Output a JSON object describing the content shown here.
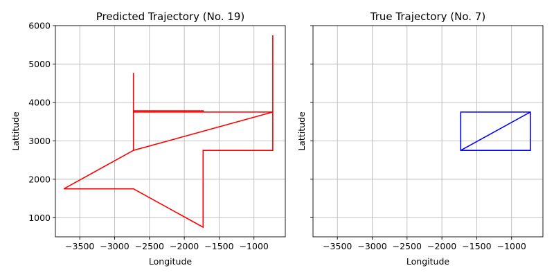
{
  "chart_data": [
    {
      "type": "line",
      "title": "Predicted Trajectory (No. 19)",
      "xlabel": "Longitude",
      "ylabel": "Lattitude",
      "xlim": [
        -3850,
        -550
      ],
      "ylim": [
        500,
        6000
      ],
      "xticks": [
        -3500,
        -3000,
        -2500,
        -2000,
        -1500,
        -1000
      ],
      "yticks": [
        1000,
        2000,
        3000,
        4000,
        5000,
        6000
      ],
      "grid": true,
      "color": "#ff0000",
      "points": [
        [
          -730,
          5750
        ],
        [
          -730,
          3750
        ],
        [
          -1730,
          3750
        ],
        [
          -1730,
          3780
        ],
        [
          -2730,
          3780
        ],
        [
          -2730,
          2750
        ],
        [
          -730,
          3750
        ],
        [
          -730,
          2750
        ],
        [
          -1730,
          2750
        ],
        [
          -1730,
          750
        ],
        [
          -2730,
          1750
        ],
        [
          -3730,
          1750
        ],
        [
          -2730,
          2750
        ],
        [
          -2730,
          4770
        ],
        [
          -2730,
          3750
        ],
        [
          -1730,
          3750
        ]
      ]
    },
    {
      "type": "line",
      "title": "True Trajectory (No. 7)",
      "xlabel": "Longitude",
      "ylabel": "Lattitude",
      "xlim": [
        -3850,
        -550
      ],
      "ylim": [
        500,
        6000
      ],
      "xticks": [
        -3500,
        -3000,
        -2500,
        -2000,
        -1500,
        -1000
      ],
      "yticks": [
        1000,
        2000,
        3000,
        4000,
        5000,
        6000
      ],
      "grid": true,
      "color": "#0000ff",
      "points": [
        [
          -1730,
          3750
        ],
        [
          -730,
          3750
        ],
        [
          -730,
          2750
        ],
        [
          -1730,
          2750
        ],
        [
          -1730,
          3750
        ],
        [
          -730,
          3750
        ],
        [
          -1730,
          2750
        ]
      ]
    }
  ]
}
